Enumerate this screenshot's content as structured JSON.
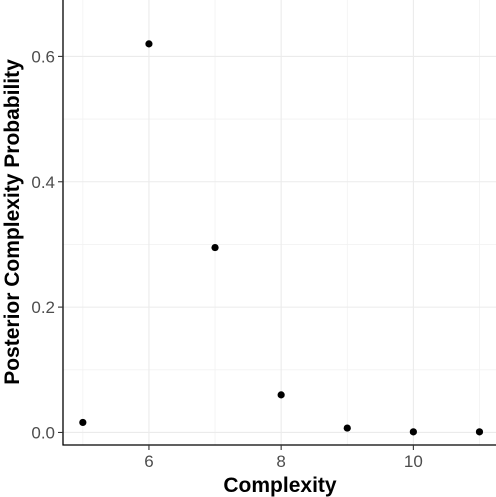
{
  "chart_data": {
    "type": "scatter",
    "title": "",
    "xlabel": "Complexity",
    "ylabel": "Posterior Complexity Probability",
    "x": [
      5,
      6,
      7,
      8,
      9,
      10,
      11
    ],
    "y": [
      0.016,
      0.62,
      0.295,
      0.06,
      0.007,
      0.001,
      0.001
    ],
    "xlim": [
      4.7,
      11.25
    ],
    "ylim": [
      -0.02,
      0.69
    ],
    "xticks": [
      6,
      8,
      10
    ],
    "xtick_labels": [
      "6",
      "8",
      "10"
    ],
    "yticks": [
      0.0,
      0.2,
      0.4,
      0.6
    ],
    "ytick_labels": [
      "0.0",
      "0.2",
      "0.4",
      "0.6"
    ],
    "grid": true,
    "legend": "none",
    "point_color": "#000000",
    "grid_color": "#ebebeb"
  }
}
